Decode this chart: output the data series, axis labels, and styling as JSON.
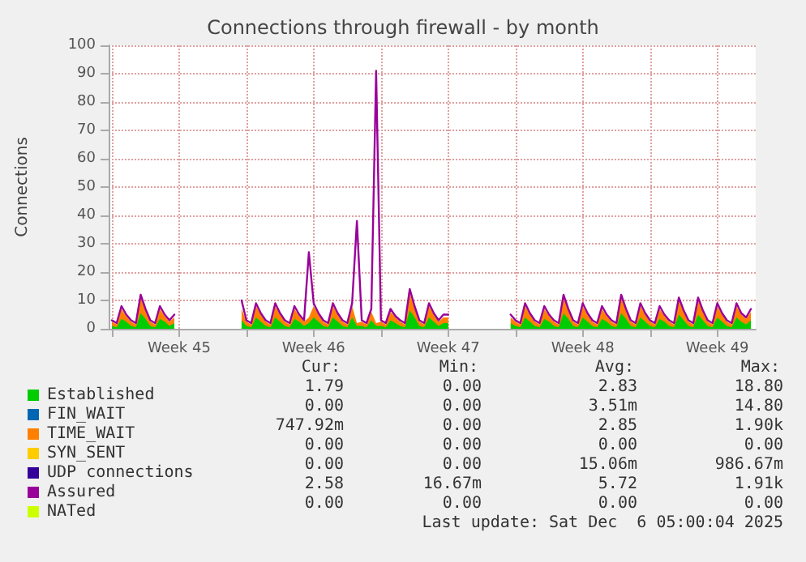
{
  "chart_data": {
    "type": "area",
    "title": "Connections through firewall - by month",
    "ylabel": "Connections",
    "x": [
      "2025-11-03T00:00",
      "2025-11-03T06:00",
      "2025-11-03T12:00",
      "2025-11-03T18:00",
      "2025-11-04T00:00",
      "2025-11-04T06:00",
      "2025-11-04T12:00",
      "2025-11-04T18:00",
      "2025-11-05T00:00",
      "2025-11-05T06:00",
      "2025-11-05T12:00",
      "2025-11-05T18:00",
      "2025-11-06T00:00",
      "2025-11-06T06:00",
      "2025-11-06T12:00",
      "2025-11-06T18:00",
      "2025-11-07T00:00",
      "2025-11-07T06:00",
      "2025-11-07T12:00",
      "2025-11-07T18:00",
      "2025-11-08T00:00",
      "2025-11-08T06:00",
      "2025-11-08T12:00",
      "2025-11-08T18:00",
      "2025-11-09T00:00",
      "2025-11-09T06:00",
      "2025-11-09T12:00",
      "2025-11-09T18:00",
      "2025-11-10T00:00",
      "2025-11-10T06:00",
      "2025-11-10T12:00",
      "2025-11-10T18:00",
      "2025-11-11T00:00",
      "2025-11-11T06:00",
      "2025-11-11T12:00",
      "2025-11-11T18:00",
      "2025-11-12T00:00",
      "2025-11-12T06:00",
      "2025-11-12T12:00",
      "2025-11-12T18:00",
      "2025-11-13T00:00",
      "2025-11-13T06:00",
      "2025-11-13T12:00",
      "2025-11-13T18:00",
      "2025-11-14T00:00",
      "2025-11-14T06:00",
      "2025-11-14T12:00",
      "2025-11-14T18:00",
      "2025-11-15T00:00",
      "2025-11-15T06:00",
      "2025-11-15T12:00",
      "2025-11-15T18:00",
      "2025-11-16T00:00",
      "2025-11-16T06:00",
      "2025-11-16T12:00",
      "2025-11-16T18:00",
      "2025-11-17T00:00",
      "2025-11-17T06:00",
      "2025-11-17T12:00",
      "2025-11-17T18:00",
      "2025-11-18T00:00",
      "2025-11-18T06:00",
      "2025-11-18T12:00",
      "2025-11-18T18:00",
      "2025-11-19T00:00",
      "2025-11-19T06:00",
      "2025-11-19T12:00",
      "2025-11-19T18:00",
      "2025-11-20T00:00",
      "2025-11-20T06:00",
      "2025-11-20T12:00",
      "2025-11-20T18:00",
      "2025-11-21T00:00",
      "2025-11-21T06:00",
      "2025-11-21T12:00",
      "2025-11-21T18:00",
      "2025-11-22T00:00",
      "2025-11-22T06:00",
      "2025-11-22T12:00",
      "2025-11-22T18:00",
      "2025-11-23T00:00",
      "2025-11-23T06:00",
      "2025-11-23T12:00",
      "2025-11-23T18:00",
      "2025-11-24T00:00",
      "2025-11-24T06:00",
      "2025-11-24T12:00",
      "2025-11-24T18:00",
      "2025-11-25T00:00",
      "2025-11-25T06:00",
      "2025-11-25T12:00",
      "2025-11-25T18:00",
      "2025-11-26T00:00",
      "2025-11-26T06:00",
      "2025-11-26T12:00",
      "2025-11-26T18:00",
      "2025-11-27T00:00",
      "2025-11-27T06:00",
      "2025-11-27T12:00",
      "2025-11-27T18:00",
      "2025-11-28T00:00",
      "2025-11-28T06:00",
      "2025-11-28T12:00",
      "2025-11-28T18:00",
      "2025-11-29T00:00",
      "2025-11-29T06:00",
      "2025-11-29T12:00",
      "2025-11-29T18:00",
      "2025-11-30T00:00",
      "2025-11-30T06:00",
      "2025-11-30T12:00",
      "2025-11-30T18:00",
      "2025-12-01T00:00",
      "2025-12-01T06:00",
      "2025-12-01T12:00",
      "2025-12-01T18:00",
      "2025-12-02T00:00",
      "2025-12-02T06:00",
      "2025-12-02T12:00",
      "2025-12-02T18:00",
      "2025-12-03T00:00",
      "2025-12-03T06:00",
      "2025-12-03T12:00",
      "2025-12-03T18:00",
      "2025-12-04T00:00",
      "2025-12-04T06:00",
      "2025-12-04T12:00",
      "2025-12-04T18:00",
      "2025-12-05T00:00",
      "2025-12-05T06:00",
      "2025-12-05T12:00",
      "2025-12-05T18:00",
      "2025-12-06T00:00",
      "2025-12-06T06:00"
    ],
    "stacked": true,
    "series": [
      {
        "name": "Established",
        "color": "#00cc00",
        "values": [
          1,
          0.5,
          3.5,
          2.5,
          1,
          0.5,
          5.5,
          3.5,
          1,
          0.5,
          3.5,
          2.5,
          1,
          2,
          null,
          null,
          null,
          null,
          null,
          null,
          null,
          null,
          null,
          null,
          null,
          null,
          null,
          3,
          1,
          0.5,
          4,
          2.5,
          1,
          0.5,
          4,
          2.5,
          1,
          0.5,
          3.5,
          2.5,
          1,
          2,
          4,
          2.5,
          1,
          0.5,
          4,
          2.5,
          1,
          0.5,
          4,
          1,
          1,
          0.5,
          3,
          1,
          1,
          0.5,
          3,
          2,
          1,
          0.5,
          6.5,
          4,
          1,
          0.5,
          4,
          2.5,
          1,
          2,
          2,
          null,
          null,
          null,
          null,
          null,
          null,
          null,
          null,
          null,
          null,
          null,
          null,
          2,
          1,
          0.5,
          4,
          2.5,
          1,
          0.5,
          3.5,
          2.5,
          1,
          0.5,
          5.5,
          3.5,
          1,
          0.5,
          4,
          2.5,
          1,
          0.5,
          3.5,
          2.5,
          1,
          0.5,
          5.5,
          3.5,
          1,
          0.5,
          4,
          2.5,
          1,
          0.5,
          3.5,
          2.5,
          1,
          0.5,
          5,
          3,
          1,
          0.5,
          5,
          3,
          1,
          0.5,
          4,
          2.5,
          1,
          0.5,
          4,
          2.5,
          1.5,
          3
        ]
      },
      {
        "name": "FIN_WAIT",
        "type": "line",
        "color": "#0066b3",
        "values": [
          null,
          null,
          null,
          null,
          null,
          null,
          null,
          null,
          null,
          null,
          null,
          null,
          null,
          null,
          null,
          null,
          null,
          null,
          null,
          null,
          null,
          null,
          null,
          null,
          null,
          null,
          null,
          null,
          null,
          null,
          null,
          null,
          null,
          null,
          null,
          null,
          null,
          null,
          null,
          null,
          null,
          null,
          null,
          null,
          null,
          null,
          null,
          null,
          null,
          null,
          null,
          null,
          null,
          null,
          null,
          null,
          null,
          null,
          null,
          null,
          null,
          null,
          null,
          null,
          null,
          null,
          null,
          null,
          null,
          null,
          null,
          null,
          null,
          null,
          null,
          null,
          null,
          null,
          null,
          null,
          null,
          null,
          null,
          null,
          null,
          null,
          null,
          null,
          null,
          null,
          null,
          null,
          null,
          null,
          null,
          null,
          null,
          null,
          null,
          null,
          null,
          null,
          null,
          null,
          null,
          null,
          null,
          null,
          null,
          null,
          null,
          null,
          null,
          null,
          null,
          null,
          null,
          null,
          null,
          null,
          null,
          null,
          null,
          null,
          null,
          null,
          null,
          null,
          null,
          null,
          null,
          null,
          null,
          null
        ]
      },
      {
        "name": "TIME_WAIT",
        "color": "#ff8000",
        "values": [
          1.5,
          1,
          3.5,
          2,
          1.5,
          1,
          5.5,
          3,
          1.5,
          1,
          3.5,
          2,
          1.5,
          2,
          null,
          null,
          null,
          null,
          null,
          null,
          null,
          null,
          null,
          null,
          null,
          null,
          null,
          4,
          1.5,
          1,
          4,
          2.5,
          1.5,
          1,
          4,
          2.5,
          1.5,
          1,
          3.5,
          2,
          1.5,
          2,
          4,
          2.5,
          1.5,
          1,
          4,
          2.5,
          1.5,
          1,
          4,
          1,
          1.5,
          1,
          3,
          1,
          1.5,
          1,
          3,
          2,
          1.5,
          1,
          6,
          3.5,
          1.5,
          1,
          4,
          2.5,
          1.5,
          2,
          2,
          null,
          null,
          null,
          null,
          null,
          null,
          null,
          null,
          null,
          null,
          null,
          null,
          2,
          1.5,
          1,
          4,
          2.5,
          1.5,
          1,
          3.5,
          2,
          1.5,
          1,
          5.5,
          3,
          1.5,
          1,
          4,
          2.5,
          1.5,
          1,
          3.5,
          2,
          1.5,
          1,
          5.5,
          3,
          1.5,
          1,
          4,
          2.5,
          1.5,
          1,
          3.5,
          2,
          1.5,
          1,
          5,
          3,
          1.5,
          1,
          5,
          3,
          1.5,
          1,
          4,
          2.5,
          1.5,
          1,
          4,
          2.5,
          2,
          3
        ]
      },
      {
        "name": "SYN_SENT",
        "type": "line",
        "color": "#ffcc00",
        "values": [
          null,
          null,
          null,
          null,
          null,
          null,
          null,
          null,
          null,
          null,
          null,
          null,
          null,
          null,
          null,
          null,
          null,
          null,
          null,
          null,
          null,
          null,
          null,
          null,
          null,
          null,
          null,
          null,
          null,
          null,
          null,
          null,
          null,
          null,
          null,
          null,
          null,
          null,
          null,
          null,
          null,
          null,
          null,
          null,
          null,
          null,
          null,
          null,
          null,
          null,
          null,
          null,
          null,
          null,
          null,
          null,
          null,
          null,
          null,
          null,
          null,
          null,
          null,
          null,
          null,
          null,
          null,
          null,
          null,
          null,
          null,
          null,
          null,
          null,
          null,
          null,
          null,
          null,
          null,
          null,
          null,
          null,
          null,
          null,
          null,
          null,
          null,
          null,
          null,
          null,
          null,
          null,
          null,
          null,
          null,
          null,
          null,
          null,
          null,
          null,
          null,
          null,
          null,
          null,
          null,
          null,
          null,
          null,
          null,
          null,
          null,
          null,
          null,
          null,
          null,
          null,
          null,
          null,
          null,
          null,
          null,
          null,
          null,
          null,
          null,
          null,
          null,
          null,
          null,
          null,
          null,
          null,
          null,
          null
        ]
      },
      {
        "name": "UDP connections",
        "type": "line",
        "color": "#330099",
        "values": [
          null,
          null,
          null,
          null,
          null,
          null,
          null,
          null,
          null,
          null,
          null,
          null,
          null,
          null,
          null,
          null,
          null,
          null,
          null,
          null,
          null,
          null,
          null,
          null,
          null,
          null,
          null,
          null,
          null,
          null,
          null,
          null,
          null,
          null,
          null,
          null,
          null,
          null,
          null,
          null,
          null,
          null,
          null,
          null,
          null,
          null,
          null,
          null,
          null,
          null,
          null,
          null,
          null,
          null,
          null,
          null,
          null,
          null,
          null,
          null,
          null,
          null,
          null,
          null,
          null,
          null,
          null,
          null,
          null,
          null,
          null,
          null,
          null,
          null,
          null,
          null,
          null,
          null,
          null,
          null,
          null,
          null,
          null,
          null,
          null,
          null,
          null,
          null,
          null,
          null,
          null,
          null,
          null,
          null,
          null,
          null,
          null,
          null,
          null,
          null,
          null,
          null,
          null,
          null,
          null,
          null,
          null,
          null,
          null,
          null,
          null,
          null,
          null,
          null,
          null,
          null,
          null,
          null,
          null,
          null,
          null,
          null,
          null,
          null,
          null,
          null,
          null,
          null,
          null,
          null,
          null,
          null,
          null,
          null
        ]
      },
      {
        "name": "Assured",
        "type": "line",
        "color": "#990099",
        "values": [
          3,
          2,
          8,
          5,
          3,
          2,
          12,
          7,
          3,
          2,
          8,
          5,
          3,
          5,
          null,
          null,
          null,
          null,
          null,
          null,
          null,
          null,
          null,
          null,
          null,
          null,
          null,
          10,
          3,
          2,
          9,
          5.5,
          3,
          2,
          9,
          5.5,
          3,
          2,
          8,
          5,
          3,
          27,
          9,
          5.5,
          3,
          2,
          9,
          5.5,
          3,
          2,
          9,
          38,
          3,
          2,
          7,
          91,
          3,
          2,
          7,
          4.5,
          3,
          2,
          14,
          8,
          3,
          2,
          9,
          5.5,
          3,
          5,
          5,
          null,
          null,
          null,
          null,
          null,
          null,
          null,
          null,
          null,
          null,
          null,
          null,
          5,
          3,
          2,
          9,
          5.5,
          3,
          2,
          8,
          5,
          3,
          2,
          12,
          7,
          3,
          2,
          9,
          5.5,
          3,
          2,
          8,
          5,
          3,
          2,
          12,
          7,
          3,
          2,
          9,
          5.5,
          3,
          2,
          8,
          5,
          3,
          2,
          11,
          6.5,
          3,
          2,
          11,
          6.5,
          3,
          2,
          9,
          5.5,
          3,
          2,
          9,
          5.5,
          4,
          7
        ]
      },
      {
        "name": "NATed",
        "type": "line",
        "color": "#ccff00",
        "values": [
          null,
          null,
          null,
          null,
          null,
          null,
          null,
          null,
          null,
          null,
          null,
          null,
          null,
          null,
          null,
          null,
          null,
          null,
          null,
          null,
          null,
          null,
          null,
          null,
          null,
          null,
          null,
          null,
          null,
          null,
          null,
          null,
          null,
          null,
          null,
          null,
          null,
          null,
          null,
          null,
          null,
          null,
          null,
          null,
          null,
          null,
          null,
          null,
          null,
          null,
          null,
          null,
          null,
          null,
          null,
          null,
          null,
          null,
          null,
          null,
          null,
          null,
          null,
          null,
          null,
          null,
          null,
          null,
          null,
          null,
          null,
          null,
          null,
          null,
          null,
          null,
          null,
          null,
          null,
          null,
          null,
          null,
          null,
          null,
          null,
          null,
          null,
          null,
          null,
          null,
          null,
          null,
          null,
          null,
          null,
          null,
          null,
          null,
          null,
          null,
          null,
          null,
          null,
          null,
          null,
          null,
          null,
          null,
          null,
          null,
          null,
          null,
          null,
          null,
          null,
          null,
          null,
          null,
          null,
          null,
          null,
          null,
          null,
          null,
          null,
          null,
          null,
          null,
          null,
          null,
          null,
          null,
          null,
          null
        ]
      }
    ],
    "xlim": [
      "2025-11-02T20:00",
      "2025-12-06T12:00"
    ],
    "xticks": [
      {
        "value": "2025-11-03T00:00",
        "label": null
      },
      {
        "value": "2025-11-06T12:00",
        "label": "Week 45"
      },
      {
        "value": "2025-11-10T00:00",
        "label": null
      },
      {
        "value": "2025-11-13T12:00",
        "label": "Week 46"
      },
      {
        "value": "2025-11-17T00:00",
        "label": null
      },
      {
        "value": "2025-11-20T12:00",
        "label": "Week 47"
      },
      {
        "value": "2025-11-24T00:00",
        "label": null
      },
      {
        "value": "2025-11-27T12:00",
        "label": "Week 48"
      },
      {
        "value": "2025-12-01T00:00",
        "label": null
      },
      {
        "value": "2025-12-04T12:00",
        "label": "Week 49"
      }
    ],
    "ylim": [
      0,
      100
    ],
    "yticks": [
      0,
      10,
      20,
      30,
      40,
      50,
      60,
      70,
      80,
      90,
      100
    ],
    "grid": true,
    "legend": "bottom left",
    "marker": "none",
    "line_style": "solid",
    "annotations": [
      "Cur:",
      "Min:",
      "Avg:",
      "Max:",
      "1.79",
      "0.00",
      "2.83",
      "18.80",
      "0.00",
      "0.00",
      "3.51m",
      "14.80",
      "747.92m",
      "0.00",
      "2.85",
      "1.90k",
      "0.00",
      "0.00",
      "0.00",
      "0.00",
      "0.00",
      "0.00",
      "15.06m",
      "986.67m",
      "2.58",
      "16.67m",
      "5.72",
      "1.91k",
      "0.00",
      "0.00",
      "0.00",
      "0.00",
      "Last update: Sat Dec  6 05:00:04 2025"
    ]
  }
}
